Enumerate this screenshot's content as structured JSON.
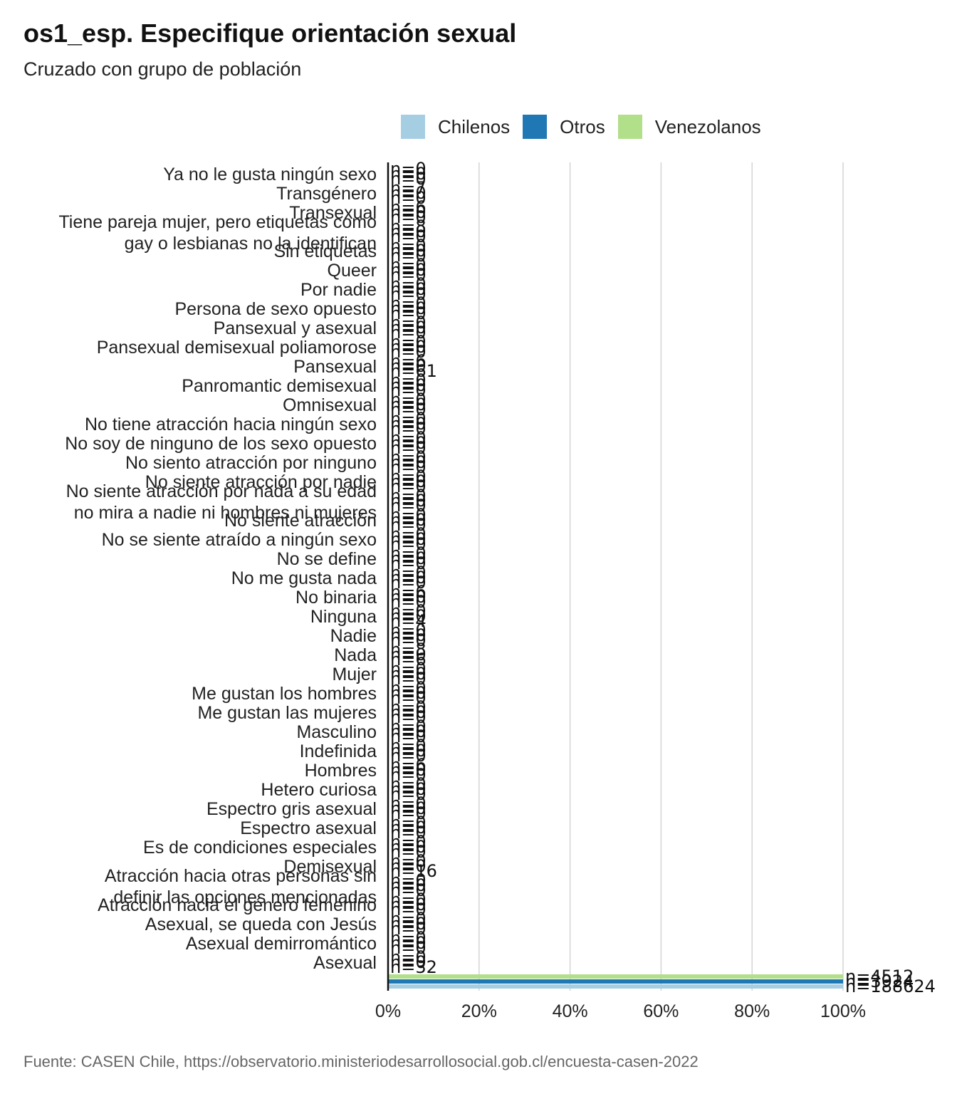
{
  "title": "os1_esp. Especifique orientación sexual",
  "subtitle": "Cruzado con grupo de población",
  "caption": "Fuente: CASEN Chile, https://observatorio.ministeriodesarrollosocial.gob.cl/encuesta-casen-2022",
  "chart_data": {
    "type": "bar",
    "orientation": "horizontal",
    "title": "os1_esp. Especifique orientación sexual",
    "subtitle": "Cruzado con grupo de población",
    "xlim": [
      0,
      100
    ],
    "x_ticks": [
      "0%",
      "20%",
      "40%",
      "60%",
      "80%",
      "100%"
    ],
    "grid": true,
    "legend_position": "top",
    "series": [
      {
        "name": "Chilenos",
        "color": "#a6cee3"
      },
      {
        "name": "Otros",
        "color": "#1f78b4"
      },
      {
        "name": "Venezolanos",
        "color": "#b2df8a"
      }
    ],
    "categories": [
      {
        "label": [
          "Ya no le gusta ningún sexo"
        ],
        "values": [
          0,
          0,
          0
        ],
        "n": [
          "n=0",
          "n=0",
          "n=0"
        ]
      },
      {
        "label": [
          "Transgénero"
        ],
        "values": [
          0,
          0,
          0
        ],
        "n": [
          "n=0",
          "n=0",
          "n=7"
        ]
      },
      {
        "label": [
          "Transexual"
        ],
        "values": [
          0,
          0,
          0
        ],
        "n": [
          "n=0",
          "n=0",
          "n=6"
        ]
      },
      {
        "label": [
          "Tiene pareja mujer, pero etiquetas como",
          "gay o lesbianas no la identifican"
        ],
        "values": [
          0,
          0,
          0
        ],
        "n": [
          "n=0",
          "n=0",
          "n=8"
        ]
      },
      {
        "label": [
          "Sin etiquetas"
        ],
        "values": [
          0,
          0,
          0
        ],
        "n": [
          "n=0",
          "n=0",
          "n=0"
        ]
      },
      {
        "label": [
          "Queer"
        ],
        "values": [
          0,
          0,
          0
        ],
        "n": [
          "n=0",
          "n=0",
          "n=0"
        ]
      },
      {
        "label": [
          "Por nadie"
        ],
        "values": [
          0,
          0,
          0
        ],
        "n": [
          "n=0",
          "n=0",
          "n=0"
        ]
      },
      {
        "label": [
          "Persona de sexo opuesto"
        ],
        "values": [
          0,
          0,
          0
        ],
        "n": [
          "n=0",
          "n=0",
          "n=0"
        ]
      },
      {
        "label": [
          "Pansexual y asexual"
        ],
        "values": [
          0,
          0,
          0
        ],
        "n": [
          "n=0",
          "n=0",
          "n=0"
        ]
      },
      {
        "label": [
          "Pansexual demisexual poliamorose"
        ],
        "values": [
          0,
          0,
          0
        ],
        "n": [
          "n=0",
          "n=0",
          "n=0"
        ]
      },
      {
        "label": [
          "Pansexual"
        ],
        "values": [
          0,
          0,
          0
        ],
        "n": [
          "n=61",
          "n=0",
          "n=6"
        ]
      },
      {
        "label": [
          "Panromantic demisexual"
        ],
        "values": [
          0,
          0,
          0
        ],
        "n": [
          "n=0",
          "n=0",
          "n=0"
        ]
      },
      {
        "label": [
          "Omnisexual"
        ],
        "values": [
          0,
          0,
          0
        ],
        "n": [
          "n=0",
          "n=0",
          "n=0"
        ]
      },
      {
        "label": [
          "No tiene atracción hacia ningún sexo"
        ],
        "values": [
          0,
          0,
          0
        ],
        "n": [
          "n=0",
          "n=0",
          "n=0"
        ]
      },
      {
        "label": [
          "No soy de ninguno de los sexo opuesto"
        ],
        "values": [
          0,
          0,
          0
        ],
        "n": [
          "n=0",
          "n=0",
          "n=0"
        ]
      },
      {
        "label": [
          "No siento atracción por ninguno"
        ],
        "values": [
          0,
          0,
          0
        ],
        "n": [
          "n=0",
          "n=0",
          "n=0"
        ]
      },
      {
        "label": [
          "No siente atracción por nadie"
        ],
        "values": [
          0,
          0,
          0
        ],
        "n": [
          "n=0",
          "n=0",
          "n=0"
        ]
      },
      {
        "label": [
          "No siente atracción por nada a su edad",
          "no mira a nadie ni hombres ni mujeres"
        ],
        "values": [
          0,
          0,
          0
        ],
        "n": [
          "n=0",
          "n=0",
          "n=0"
        ]
      },
      {
        "label": [
          "No siente atracción"
        ],
        "values": [
          0,
          0,
          0
        ],
        "n": [
          "n=0",
          "n=0",
          "n=0"
        ]
      },
      {
        "label": [
          "No se siente atraído a ningún sexo"
        ],
        "values": [
          0,
          0,
          0
        ],
        "n": [
          "n=0",
          "n=0",
          "n=0"
        ]
      },
      {
        "label": [
          "No se define"
        ],
        "values": [
          0,
          0,
          0
        ],
        "n": [
          "n=0",
          "n=0",
          "n=0"
        ]
      },
      {
        "label": [
          "No me gusta nada"
        ],
        "values": [
          0,
          0,
          0
        ],
        "n": [
          "n=0",
          "n=0",
          "n=0"
        ]
      },
      {
        "label": [
          "No binaria"
        ],
        "values": [
          0,
          0,
          0
        ],
        "n": [
          "n=0",
          "n=0",
          "n=6"
        ]
      },
      {
        "label": [
          "Ninguna"
        ],
        "values": [
          0,
          0,
          0
        ],
        "n": [
          "n=4",
          "n=0",
          "n=0"
        ]
      },
      {
        "label": [
          "Nadie"
        ],
        "values": [
          0,
          0,
          0
        ],
        "n": [
          "n=0",
          "n=0",
          "n=0"
        ]
      },
      {
        "label": [
          "Nada"
        ],
        "values": [
          0,
          0,
          0
        ],
        "n": [
          "n=6",
          "n=0",
          "n=8"
        ]
      },
      {
        "label": [
          "Mujer"
        ],
        "values": [
          0,
          0,
          0
        ],
        "n": [
          "n=0",
          "n=0",
          "n=0"
        ]
      },
      {
        "label": [
          "Me gustan los hombres"
        ],
        "values": [
          0,
          0,
          0
        ],
        "n": [
          "n=0",
          "n=0",
          "n=0"
        ]
      },
      {
        "label": [
          "Me gustan las mujeres"
        ],
        "values": [
          0,
          0,
          0
        ],
        "n": [
          "n=0",
          "n=0",
          "n=0"
        ]
      },
      {
        "label": [
          "Masculino"
        ],
        "values": [
          0,
          0,
          0
        ],
        "n": [
          "n=0",
          "n=0",
          "n=0"
        ]
      },
      {
        "label": [
          "Indefinida"
        ],
        "values": [
          0,
          0,
          0
        ],
        "n": [
          "n=0",
          "n=0",
          "n=0"
        ]
      },
      {
        "label": [
          "Hombres"
        ],
        "values": [
          0,
          0,
          0
        ],
        "n": [
          "n=0",
          "n=0",
          "n=6"
        ]
      },
      {
        "label": [
          "Hetero curiosa"
        ],
        "values": [
          0,
          0,
          0
        ],
        "n": [
          "n=0",
          "n=0",
          "n=0"
        ]
      },
      {
        "label": [
          "Espectro gris asexual"
        ],
        "values": [
          0,
          0,
          0
        ],
        "n": [
          "n=0",
          "n=0",
          "n=0"
        ]
      },
      {
        "label": [
          "Espectro asexual"
        ],
        "values": [
          0,
          0,
          0
        ],
        "n": [
          "n=0",
          "n=0",
          "n=0"
        ]
      },
      {
        "label": [
          "Es de condiciones especiales"
        ],
        "values": [
          0,
          0,
          0
        ],
        "n": [
          "n=0",
          "n=0",
          "n=0"
        ]
      },
      {
        "label": [
          "Demisexual"
        ],
        "values": [
          0,
          0,
          0
        ],
        "n": [
          "n=16",
          "n=0",
          "n=0"
        ]
      },
      {
        "label": [
          "Atracción hacia otras personas sin",
          "definir las opciones mencionadas"
        ],
        "values": [
          0,
          0,
          0
        ],
        "n": [
          "n=0",
          "n=0",
          "n=0"
        ]
      },
      {
        "label": [
          "Atracción hacia el género femenino"
        ],
        "values": [
          0,
          0,
          0
        ],
        "n": [
          "n=0",
          "n=0",
          "n=0"
        ]
      },
      {
        "label": [
          "Asexual, se queda con Jesús"
        ],
        "values": [
          0,
          0,
          0
        ],
        "n": [
          "n=0",
          "n=0",
          "n=0"
        ]
      },
      {
        "label": [
          "Asexual demirromántico"
        ],
        "values": [
          0,
          0,
          0
        ],
        "n": [
          "n=0",
          "n=0",
          "n=0"
        ]
      },
      {
        "label": [
          "Asexual"
        ],
        "values": [
          0,
          0,
          0
        ],
        "n": [
          "n=32",
          "n=0",
          "n=0"
        ]
      },
      {
        "label": [
          ""
        ],
        "values": [
          100,
          100,
          100
        ],
        "n": [
          "n=188624",
          "n=3924",
          "n=4512"
        ]
      }
    ]
  }
}
